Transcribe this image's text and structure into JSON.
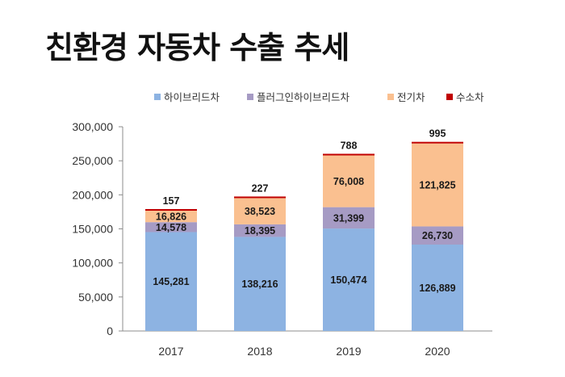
{
  "title": "친환경 자동차 수출 추세",
  "chart_data": {
    "type": "bar",
    "stacked": true,
    "categories": [
      "2017",
      "2018",
      "2019",
      "2020"
    ],
    "series": [
      {
        "name": "하이브리드차",
        "color": "#8db3e2",
        "values": [
          145281,
          138216,
          150474,
          126889
        ]
      },
      {
        "name": "플러그인하이브리드차",
        "color": "#a69bc4",
        "values": [
          14578,
          18395,
          31399,
          26730
        ]
      },
      {
        "name": "전기차",
        "color": "#fac090",
        "values": [
          16826,
          38523,
          76008,
          121825
        ]
      },
      {
        "name": "수소차",
        "color": "#c00000",
        "values": [
          157,
          227,
          788,
          995
        ]
      }
    ],
    "ylim": [
      0,
      300000
    ],
    "yticks": [
      "300,000",
      "250,000",
      "200,000",
      "150,000",
      "100,000",
      "50,000",
      "0"
    ],
    "ytick_values": [
      300000,
      250000,
      200000,
      150000,
      100000,
      50000,
      0
    ],
    "legend_position": "top",
    "grid": false
  }
}
